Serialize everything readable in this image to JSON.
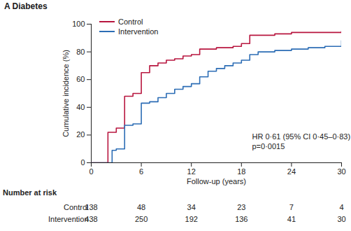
{
  "chart_data": {
    "type": "line",
    "title": "A Diabetes",
    "x_label": "Follow-up (years)",
    "y_label": "Cumulative incidence (%)",
    "xlim": [
      0,
      30
    ],
    "xticks": [
      0,
      6,
      12,
      18,
      24,
      30
    ],
    "ylim": [
      0,
      100
    ],
    "yticks": [
      0,
      20,
      40,
      60,
      80,
      100
    ],
    "grid": false,
    "legend": "top-left",
    "line_style": "step",
    "series": [
      {
        "name": "Control",
        "color": "#b8163f",
        "x": [
          0,
          2,
          3,
          4,
          5,
          6,
          7,
          8,
          9,
          10,
          11,
          12,
          13,
          14,
          15,
          16,
          17,
          18,
          19,
          20,
          22,
          24,
          26,
          29,
          30
        ],
        "values": [
          0,
          22,
          25,
          48,
          50,
          65,
          70,
          72,
          74,
          75,
          77,
          78,
          82,
          82,
          83,
          83,
          84,
          86,
          92,
          92,
          93,
          94,
          94,
          94,
          95
        ]
      },
      {
        "name": "Intervention",
        "color": "#2c6db5",
        "x": [
          0,
          2.5,
          3,
          4,
          5,
          6,
          7,
          8,
          9,
          10,
          11,
          12,
          13,
          14,
          15,
          16,
          17,
          18,
          19,
          20,
          22,
          24,
          26,
          28,
          30
        ],
        "values": [
          0,
          9,
          10,
          27,
          28,
          43,
          44,
          47,
          50,
          53,
          55,
          57,
          62,
          66,
          68,
          70,
          72,
          74,
          78,
          80,
          81,
          82,
          83,
          84,
          88
        ]
      }
    ],
    "annotations": [
      "HR 0·61 (95% CI 0·45–0·83)",
      "p=0·0015"
    ],
    "number_at_risk": {
      "title": "Number at risk",
      "x": [
        0,
        6,
        12,
        18,
        24,
        30
      ],
      "rows": [
        {
          "name": "Control",
          "values": [
            138,
            48,
            34,
            23,
            7,
            4
          ]
        },
        {
          "name": "Intervention",
          "values": [
            438,
            250,
            192,
            136,
            41,
            30
          ]
        }
      ]
    }
  }
}
